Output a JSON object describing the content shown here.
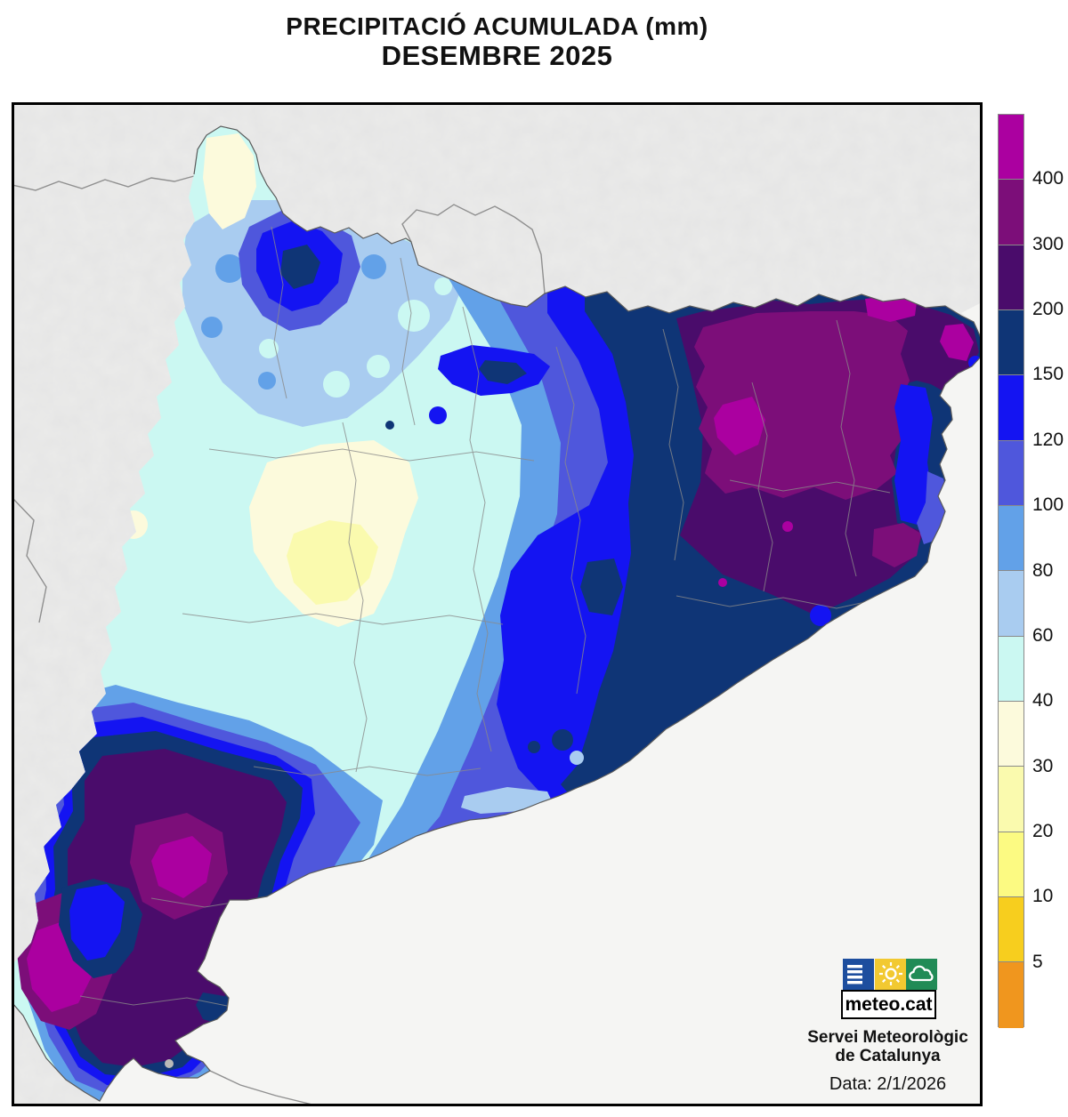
{
  "title": {
    "line1": "PRECIPITACIÓ ACUMULADA (mm)",
    "line2": "DESEMBRE 2025"
  },
  "legend": {
    "tick_values": [
      "400",
      "300",
      "200",
      "150",
      "120",
      "100",
      "80",
      "60",
      "40",
      "30",
      "20",
      "10",
      "5"
    ],
    "colors_top_to_bottom": [
      "#AB00A0",
      "#7C0E79",
      "#4A0C6B",
      "#0F3576",
      "#1414F2",
      "#4F57DC",
      "#62A1E8",
      "#A9CCF0",
      "#CBF8F2",
      "#FCFADC",
      "#FAFAAE",
      "#FCFA82",
      "#F7CE1E",
      "#F0961E"
    ]
  },
  "branding": {
    "logo_text": "meteo.cat",
    "org_line1": "Servei Meteorològic",
    "org_line2": "de Catalunya",
    "logo_colors": {
      "bars_square": "#1D4E9E",
      "sun_square": "#F2C931",
      "cloud_square": "#218B56"
    }
  },
  "footer": {
    "date_label": "Data: 2/1/2026"
  },
  "map": {
    "sea_color": "#F5F5F3",
    "outside_land_color": "#EDEDEB",
    "frame_color": "#000000"
  }
}
